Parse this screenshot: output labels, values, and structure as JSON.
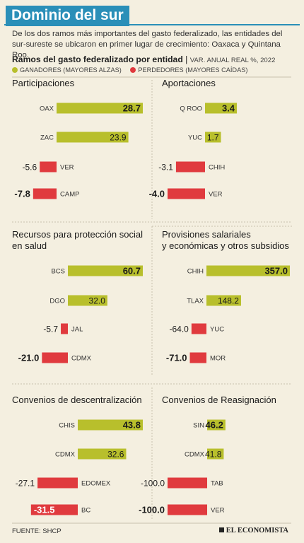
{
  "header": {
    "title": "Dominio del sur",
    "subtitle": "De los dos ramos más importantes del gasto federalizado, las entidades del sur-sureste se ubicaron en primer lugar de crecimiento: Oaxaca y Quintana Roo.",
    "chart_title": "Ramos del gasto federalizado por entidad",
    "chart_unit": "VAR. ANUAL REAL %, 2022"
  },
  "legend": {
    "winners": "GANADORES (MAYORES ALZAS)",
    "losers": "PERDEDORES (MAYORES CAÍDAS)"
  },
  "colors": {
    "winner": "#b8bf2c",
    "loser": "#e03a3e",
    "title_bg": "#2a8fb8",
    "background": "#f4efe0"
  },
  "footer": {
    "source": "FUENTE: SHCP",
    "brand": "EL ECONOMISTA"
  },
  "chart_data": [
    {
      "type": "bar",
      "title": "Participaciones",
      "categories": [
        "OAX",
        "ZAC",
        "VER",
        "CAMP"
      ],
      "values": [
        28.7,
        23.9,
        -5.6,
        -7.8
      ],
      "labels": [
        "28.7",
        "23.9",
        "-5.6",
        "-7.8"
      ],
      "bold": [
        true,
        false,
        false,
        true
      ]
    },
    {
      "type": "bar",
      "title": "Aportaciones",
      "categories": [
        "Q ROO",
        "YUC",
        "CHIH",
        "VER"
      ],
      "values": [
        3.4,
        1.7,
        -3.1,
        -4.0
      ],
      "labels": [
        "3.4",
        "1.7",
        "-3.1",
        "-4.0"
      ],
      "bold": [
        true,
        false,
        false,
        true
      ]
    },
    {
      "type": "bar",
      "title": "Recursos para protección social en salud",
      "categories": [
        "BCS",
        "DGO",
        "JAL",
        "CDMX"
      ],
      "values": [
        60.7,
        32.0,
        -5.7,
        -21.0
      ],
      "labels": [
        "60.7",
        "32.0",
        "-5.7",
        "-21.0"
      ],
      "bold": [
        true,
        false,
        false,
        true
      ]
    },
    {
      "type": "bar",
      "title": "Provisiones salariales y económicas y otros subsidios",
      "categories": [
        "CHIH",
        "TLAX",
        "YUC",
        "MOR"
      ],
      "values": [
        357.0,
        148.2,
        -64.0,
        -71.0
      ],
      "labels": [
        "357.0",
        "148.2",
        "-64.0",
        "-71.0"
      ],
      "bold": [
        true,
        false,
        false,
        true
      ]
    },
    {
      "type": "bar",
      "title": "Convenios de descentralización",
      "categories": [
        "CHIS",
        "CDMX",
        "EDOMEX",
        "BC"
      ],
      "values": [
        43.8,
        32.6,
        -27.1,
        -31.5
      ],
      "labels": [
        "43.8",
        "32.6",
        "-27.1",
        "-31.5"
      ],
      "bold": [
        true,
        false,
        false,
        true
      ]
    },
    {
      "type": "bar",
      "title": "Convenios de Reasignación",
      "categories": [
        "SIN",
        "CDMX",
        "TAB",
        "VER"
      ],
      "values": [
        46.2,
        41.8,
        -100.0,
        -100.0
      ],
      "labels": [
        "46.2",
        "41.8",
        "-100.0",
        "-100.0"
      ],
      "bold": [
        true,
        false,
        false,
        true
      ]
    }
  ]
}
